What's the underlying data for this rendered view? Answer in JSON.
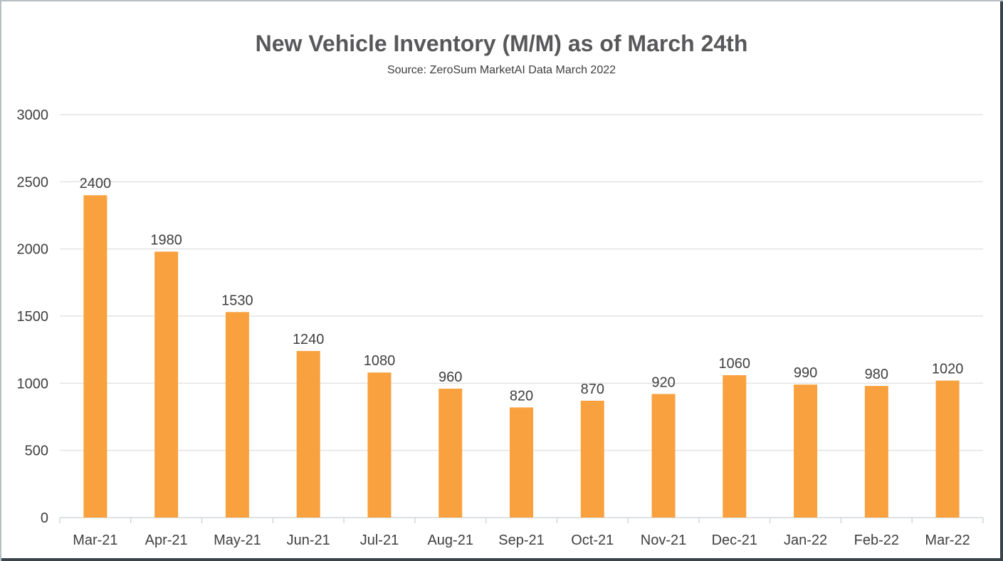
{
  "frame": {
    "border_top_left_color": "#b7bfc6",
    "border_bottom_right_color": "#39444d",
    "background": "#ffffff"
  },
  "chart_data": {
    "type": "bar",
    "title": "New Vehicle Inventory (M/M) as of March 24th",
    "subtitle": "Source: ZeroSum MarketAI Data March 2022",
    "categories": [
      "Mar-21",
      "Apr-21",
      "May-21",
      "Jun-21",
      "Jul-21",
      "Aug-21",
      "Sep-21",
      "Oct-21",
      "Nov-21",
      "Dec-21",
      "Jan-22",
      "Feb-22",
      "Mar-22"
    ],
    "values": [
      2400,
      1980,
      1530,
      1240,
      1080,
      960,
      820,
      870,
      920,
      1060,
      990,
      980,
      1020
    ],
    "xlabel": "",
    "ylabel": "",
    "ylim": [
      0,
      3000
    ],
    "yticks": [
      0,
      500,
      1000,
      1500,
      2000,
      2500,
      3000
    ],
    "grid": true,
    "legend": "none",
    "value_labels": true,
    "bar_color": "#F9A13E",
    "title_color": "#58585a",
    "subtitle_color": "#3d3d3d",
    "value_label_color": "#3f3f3f",
    "axis_label_color": "#3f3f3f",
    "gridline_color": "#e3e3e3",
    "axis_line_color": "#d3d8db"
  }
}
